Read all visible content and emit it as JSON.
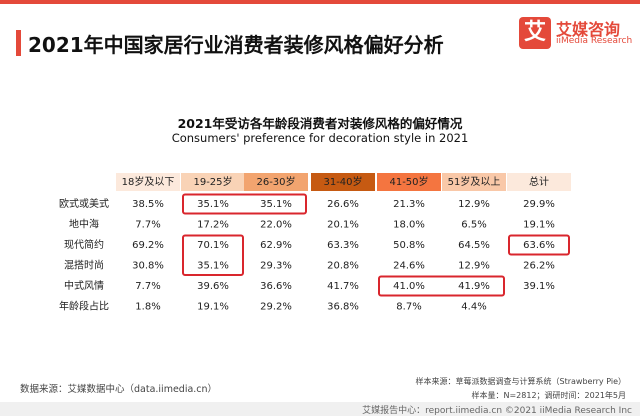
{
  "header": {
    "title": "2021年中国家居行业消费者装修风格偏好分析",
    "logo_mark": "艾",
    "logo_cn": "艾媒咨询",
    "logo_en": "iiMedia Research"
  },
  "chart_data": {
    "type": "table",
    "title": "2021年受访各年龄段消费者对装修风格的偏好情况",
    "subtitle": "Consumers' preference for decoration style in 2021",
    "columns": [
      "18岁及以下",
      "19-25岁",
      "26-30岁",
      "31-40岁",
      "41-50岁",
      "51岁及以上",
      "总计"
    ],
    "header_colors": [
      "#fce9dc",
      "#f9d3b6",
      "#f2a46f",
      "#c65a12",
      "#f47540",
      "#f9c8a8",
      "#fce9dc"
    ],
    "rows": [
      {
        "label": "欧式或美式",
        "values": [
          "38.5%",
          "35.1%",
          "35.1%",
          "26.6%",
          "21.3%",
          "12.9%",
          "29.9%"
        ]
      },
      {
        "label": "地中海",
        "values": [
          "7.7%",
          "17.2%",
          "22.0%",
          "20.1%",
          "18.0%",
          "6.5%",
          "19.1%"
        ]
      },
      {
        "label": "现代简约",
        "values": [
          "69.2%",
          "70.1%",
          "62.9%",
          "63.3%",
          "50.8%",
          "64.5%",
          "63.6%"
        ]
      },
      {
        "label": "混搭时尚",
        "values": [
          "30.8%",
          "35.1%",
          "29.3%",
          "20.8%",
          "24.6%",
          "12.9%",
          "26.2%"
        ]
      },
      {
        "label": "中式风情",
        "values": [
          "7.7%",
          "39.6%",
          "36.6%",
          "41.7%",
          "41.0%",
          "41.9%",
          "39.1%"
        ]
      },
      {
        "label": "年龄段占比",
        "values": [
          "1.8%",
          "19.1%",
          "29.2%",
          "36.8%",
          "8.7%",
          "4.4%",
          ""
        ]
      }
    ],
    "highlights": [
      {
        "row": 0,
        "col_start": 1,
        "col_end": 2
      },
      {
        "row": 2,
        "row_end": 3,
        "col_start": 1,
        "col_end": 1
      },
      {
        "row": 2,
        "col_start": 6,
        "col_end": 6
      },
      {
        "row": 4,
        "col_start": 4,
        "col_end": 5
      }
    ],
    "highlight_color": "#d9262d"
  },
  "sources": {
    "left": "数据来源：艾媒数据中心（data.iimedia.cn）",
    "right1": "样本来源：草莓派数据调查与计算系统（Strawberry Pie）",
    "right2": "样本量：N=2812；调研时间：2021年5月"
  },
  "footer": {
    "text": "艾媒报告中心：report.iimedia.cn   ©2021  iiMedia Research  Inc"
  }
}
